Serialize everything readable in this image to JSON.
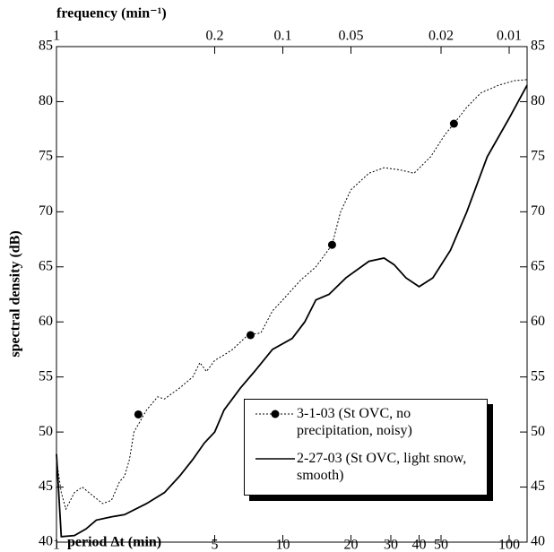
{
  "chart_data": {
    "type": "line",
    "title": "frequency  (min⁻¹)",
    "x_label": "period  Δt  (min)",
    "y_label": "spectral  density  (dB)",
    "xlim": [
      1,
      120
    ],
    "xscale": "log",
    "xticks": [
      1,
      5,
      10,
      20,
      30,
      40,
      50,
      100
    ],
    "x2lim": [
      1,
      0.008333
    ],
    "x2scale": "log-reciprocal",
    "x2ticks": [
      1,
      0.2,
      0.1,
      0.05,
      0.02,
      0.01
    ],
    "ylim": [
      40,
      85
    ],
    "yticks": [
      40,
      45,
      50,
      55,
      60,
      65,
      70,
      75,
      80,
      85
    ],
    "right_axis_labels": true,
    "series": [
      {
        "name": "3-1-03 (St OVC, no precipitation, noisy)",
        "color": "#000000",
        "style": "dotted",
        "x": [
          1,
          1.05,
          1.1,
          1.2,
          1.3,
          1.45,
          1.6,
          1.75,
          1.9,
          2,
          2.1,
          2.2,
          2.5,
          2.8,
          3,
          3.5,
          4,
          4.3,
          4.6,
          5,
          5.5,
          6,
          7,
          8,
          9,
          10,
          12,
          14,
          16.5,
          18,
          20,
          24,
          28,
          33,
          38,
          45,
          52,
          57,
          65,
          75,
          90,
          105,
          120
        ],
        "values": [
          47.5,
          44.5,
          43,
          44.5,
          45,
          44.2,
          43.5,
          43.8,
          45.5,
          46,
          47.5,
          50,
          52,
          53.2,
          53,
          54,
          55,
          56.3,
          55.5,
          56.5,
          57,
          57.5,
          58.8,
          59,
          61,
          62,
          63.8,
          65,
          67,
          70,
          72,
          73.5,
          74,
          73.8,
          73.5,
          75,
          77,
          78,
          79.5,
          80.8,
          81.5,
          81.9,
          82
        ],
        "marker_x": [
          2.3,
          7.2,
          16.5,
          57
        ],
        "marker_values": [
          51.6,
          58.8,
          67,
          78
        ]
      },
      {
        "name": "2-27-03 (St OVC, light snow, smooth)",
        "color": "#000000",
        "style": "solid",
        "x": [
          1,
          1.05,
          1.2,
          1.35,
          1.5,
          1.75,
          2,
          2.5,
          3,
          3.5,
          4,
          4.5,
          5,
          5.5,
          6.5,
          7.5,
          9,
          11,
          12.5,
          14,
          16,
          19,
          24,
          28,
          31,
          35,
          40,
          46,
          55,
          65,
          80,
          100,
          120
        ],
        "values": [
          48,
          40.5,
          40.6,
          41.2,
          42,
          42.3,
          42.5,
          43.5,
          44.5,
          46,
          47.5,
          49,
          50,
          52,
          54,
          55.5,
          57.5,
          58.5,
          60,
          62,
          62.5,
          64,
          65.5,
          65.8,
          65.2,
          64,
          63.2,
          64,
          66.5,
          70,
          75,
          78.5,
          81.5
        ]
      }
    ]
  }
}
